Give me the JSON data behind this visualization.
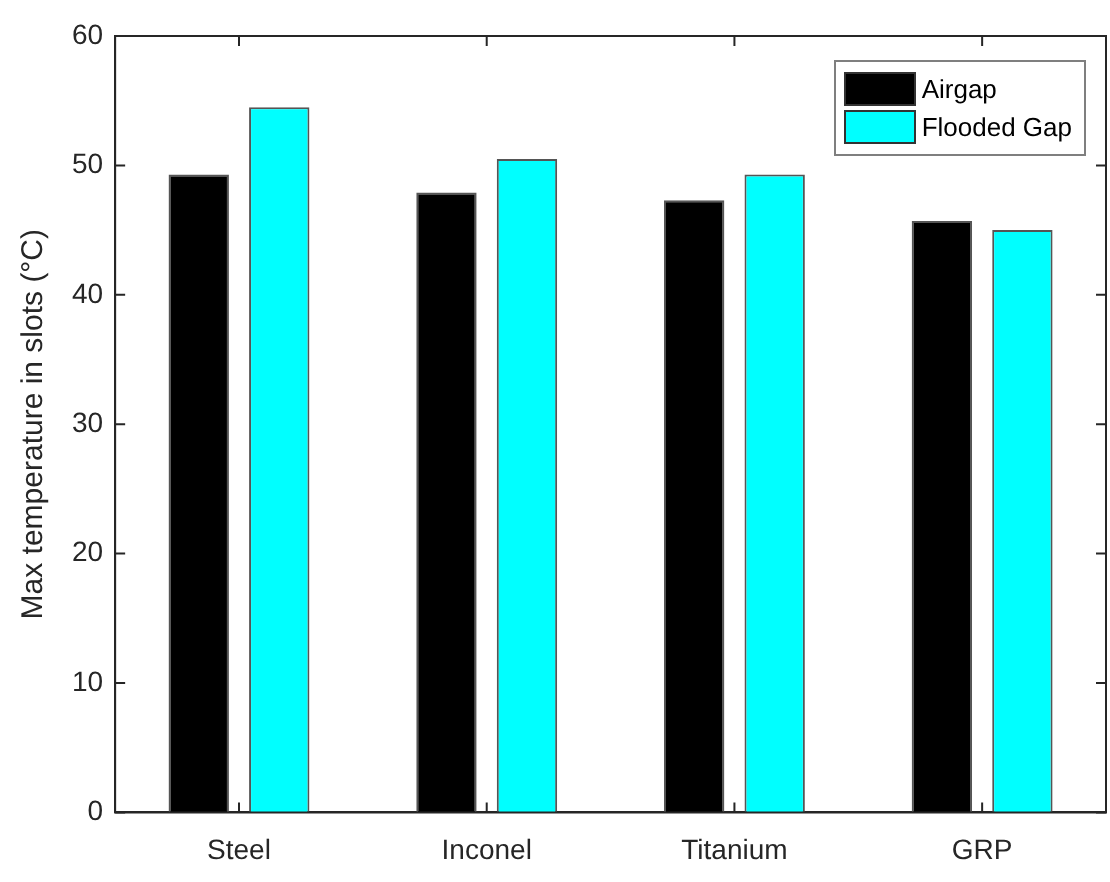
{
  "chart_data": {
    "type": "bar",
    "ylabel": "Max temperature in slots (°C)",
    "categories": [
      "Steel",
      "Inconel",
      "Titanium",
      "GRP"
    ],
    "series": [
      {
        "name": "Airgap",
        "color": "#000000",
        "values": [
          49.3,
          47.9,
          47.3,
          45.7
        ]
      },
      {
        "name": "Flooded Gap",
        "color": "#00ffff",
        "values": [
          54.5,
          50.5,
          49.3,
          45.0
        ]
      }
    ],
    "ylim": [
      0,
      60
    ],
    "yticks": [
      0,
      10,
      20,
      30,
      40,
      50,
      60
    ],
    "grid": false,
    "legend": "top right"
  }
}
